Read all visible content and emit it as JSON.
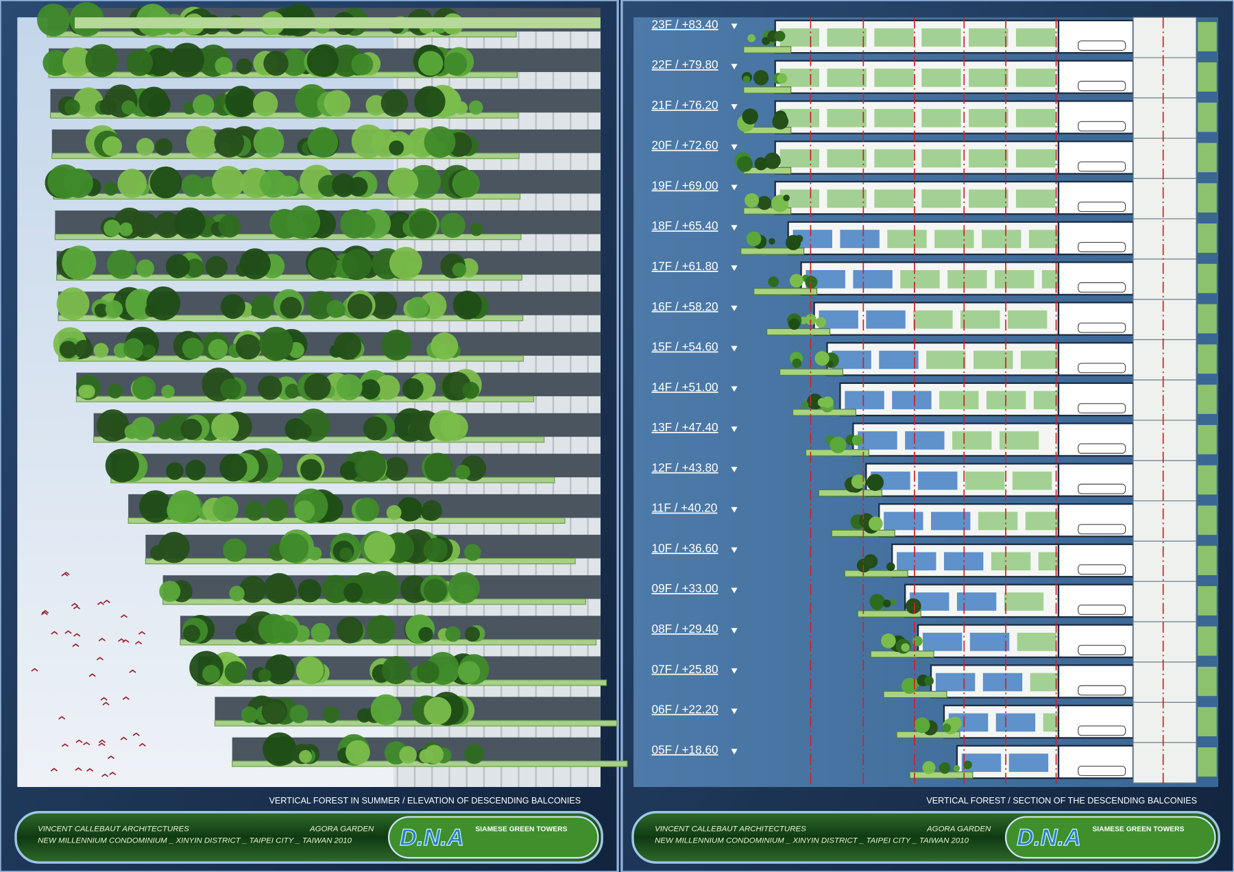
{
  "footer": {
    "office": "VINCENT CALLEBAUT ARCHITECTURES",
    "project": "AGORA GARDEN",
    "location": "NEW MILLENNIUM CONDOMINIUM _ XINYIN DISTRICT _ TAIPEI CITY _ TAIWAN 2010",
    "logo": "D.N.A",
    "tagline": "SIAMESE GREEN TOWERS"
  },
  "elevation": {
    "caption": "VERTICAL FOREST IN SUMMER / ELEVATION OF DESCENDING BALCONIES"
  },
  "section": {
    "caption": "VERTICAL FOREST / SECTION OF THE DESCENDING BALCONIES",
    "levels": [
      "23F / +83.40",
      "22F / +79.80",
      "21F / +76.20",
      "20F / +72.60",
      "19F / +69.00",
      "18F / +65.40",
      "17F / +61.80",
      "16F / +58.20",
      "15F / +54.60",
      "14F / +51.00",
      "13F / +47.40",
      "12F / +43.80",
      "11F / +40.20",
      "10F / +36.60",
      "09F / +33.00",
      "08F / +29.40",
      "07F / +25.80",
      "06F / +22.20",
      "05F / +18.60"
    ]
  }
}
